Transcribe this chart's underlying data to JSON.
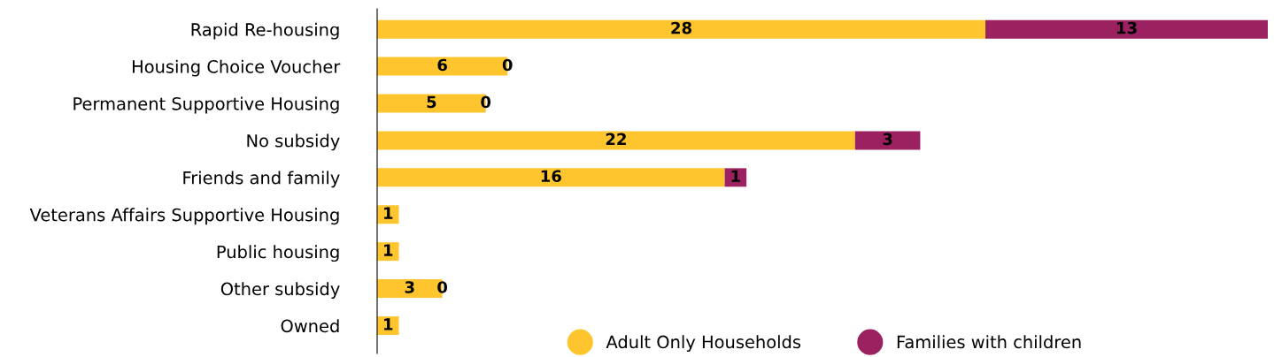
{
  "chart_data": {
    "type": "bar",
    "orientation": "horizontal",
    "stacked": true,
    "data_labels": true,
    "legend": "bottom",
    "grid": false,
    "categories": [
      "Rapid Re-housing",
      "Housing Choice Voucher",
      "Permanent Supportive Housing",
      "No subsidy",
      "Friends and family",
      "Veterans Affairs Supportive Housing",
      "Public housing",
      "Other subsidy",
      "Owned"
    ],
    "series": [
      {
        "name": "Adult Only Households",
        "color": "#fec52e",
        "values": [
          28,
          6,
          5,
          22,
          16,
          1,
          1,
          3,
          1
        ]
      },
      {
        "name": "Families with children",
        "color": "#9b2160",
        "values": [
          13,
          0,
          0,
          3,
          1,
          null,
          null,
          0,
          null
        ]
      }
    ]
  }
}
